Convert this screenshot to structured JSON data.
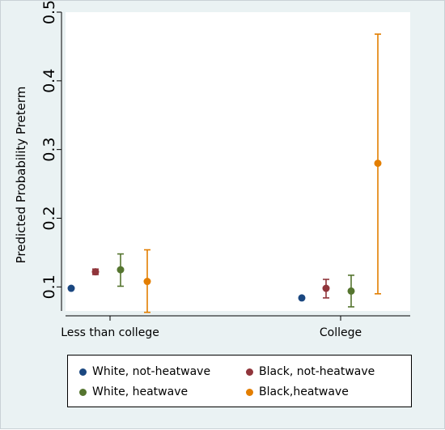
{
  "chart_data": {
    "type": "scatter",
    "title": "",
    "xlabel": "",
    "ylabel": "Predicted Probability Preterm",
    "categories": [
      "Less than college",
      "College"
    ],
    "ylim": [
      0.065,
      0.5
    ],
    "yticks": [
      0.1,
      0.2,
      0.3,
      0.4,
      0.5
    ],
    "ytick_labels": [
      "0.1",
      "0.2",
      "0.3",
      "0.4",
      "0.5"
    ],
    "grid": false,
    "legend_position": "bottom",
    "series": [
      {
        "name": "White, not-heatwave",
        "color": "#1a4780",
        "points": [
          {
            "category": "Less than college",
            "y": 0.098,
            "lo": null,
            "hi": null
          },
          {
            "category": "College",
            "y": 0.084,
            "lo": null,
            "hi": null
          }
        ]
      },
      {
        "name": "Black, not-heatwave",
        "color": "#90353b",
        "points": [
          {
            "category": "Less than college",
            "y": 0.122,
            "lo": 0.118,
            "hi": 0.126
          },
          {
            "category": "College",
            "y": 0.098,
            "lo": 0.084,
            "hi": 0.111
          }
        ]
      },
      {
        "name": "White, heatwave",
        "color": "#55752f",
        "points": [
          {
            "category": "Less than college",
            "y": 0.125,
            "lo": 0.101,
            "hi": 0.148
          },
          {
            "category": "College",
            "y": 0.094,
            "lo": 0.071,
            "hi": 0.117
          }
        ]
      },
      {
        "name": "Black,heatwave",
        "color": "#e37e00",
        "points": [
          {
            "category": "Less than college",
            "y": 0.108,
            "lo": 0.063,
            "hi": 0.154
          },
          {
            "category": "College",
            "y": 0.28,
            "lo": 0.09,
            "hi": 0.468
          }
        ]
      }
    ]
  }
}
